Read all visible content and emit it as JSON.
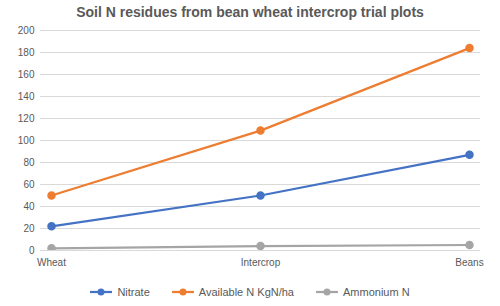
{
  "chart_data": {
    "type": "line",
    "title": "Soil N residues from bean wheat intercrop trial plots",
    "categories": [
      "Wheat",
      "Intercrop",
      "Beans"
    ],
    "series": [
      {
        "name": "Nitrate",
        "color": "#4472c4",
        "values": [
          22,
          50,
          87
        ],
        "marker": "circle",
        "line_style": "solid"
      },
      {
        "name": "Available N KgN/ha",
        "color": "#ed7d31",
        "values": [
          50,
          109,
          184
        ],
        "marker": "circle",
        "line_style": "solid"
      },
      {
        "name": "Ammonium N",
        "color": "#a5a5a5",
        "values": [
          2,
          4,
          5
        ],
        "marker": "circle",
        "line_style": "solid"
      }
    ],
    "ylim": [
      0,
      200
    ],
    "yticks": [
      0,
      20,
      40,
      60,
      80,
      100,
      120,
      140,
      160,
      180,
      200
    ],
    "grid": true,
    "legend": "bottom"
  }
}
